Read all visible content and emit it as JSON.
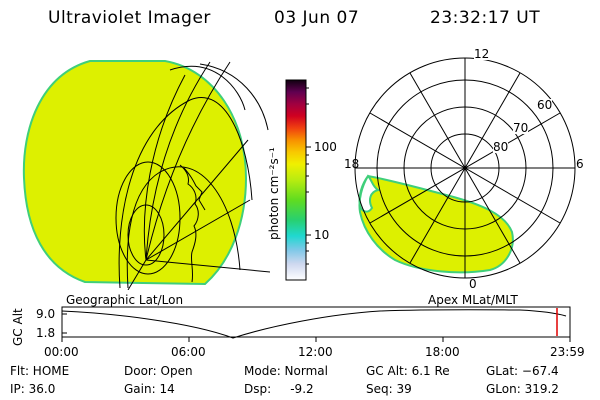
{
  "header": {
    "instrument": "Ultraviolet Imager",
    "date": "03 Jun 07",
    "time": "23:32:17 UT"
  },
  "colorbar": {
    "unit_label": "photon cm⁻²s⁻¹",
    "tick_100": "100",
    "tick_10": "10"
  },
  "polar_plot": {
    "mlt_top": "12",
    "mlt_left": "18",
    "mlt_right": "6",
    "mlt_bottom": "0",
    "lat_60": "60",
    "lat_70": "70",
    "lat_80": "80"
  },
  "map_labels": {
    "geographic": "Geographic Lat/Lon",
    "apex": "Apex MLat/MLT"
  },
  "altitude_plot": {
    "ylabel": "GC Alt",
    "y_max": "9.0",
    "y_min": "1.8",
    "x_ticks": [
      "00:00",
      "06:00",
      "12:00",
      "18:00",
      "23:59"
    ]
  },
  "status": {
    "flt": "Flt: HOME",
    "ip": "IP: 36.0",
    "door": "Door: Open",
    "gain": "Gain: 14",
    "mode": "Mode: Normal",
    "dsp": "Dsp:     -9.2",
    "gc_alt": "GC Alt: 6.1 Re",
    "seq": "Seq: 39",
    "glat": "GLat: −67.4",
    "glon": "GLon: 319.2"
  },
  "colors": {
    "emission_fill": "#ddf000",
    "emission_edge": "#3fcf7a",
    "marker_red": "#e00000"
  }
}
